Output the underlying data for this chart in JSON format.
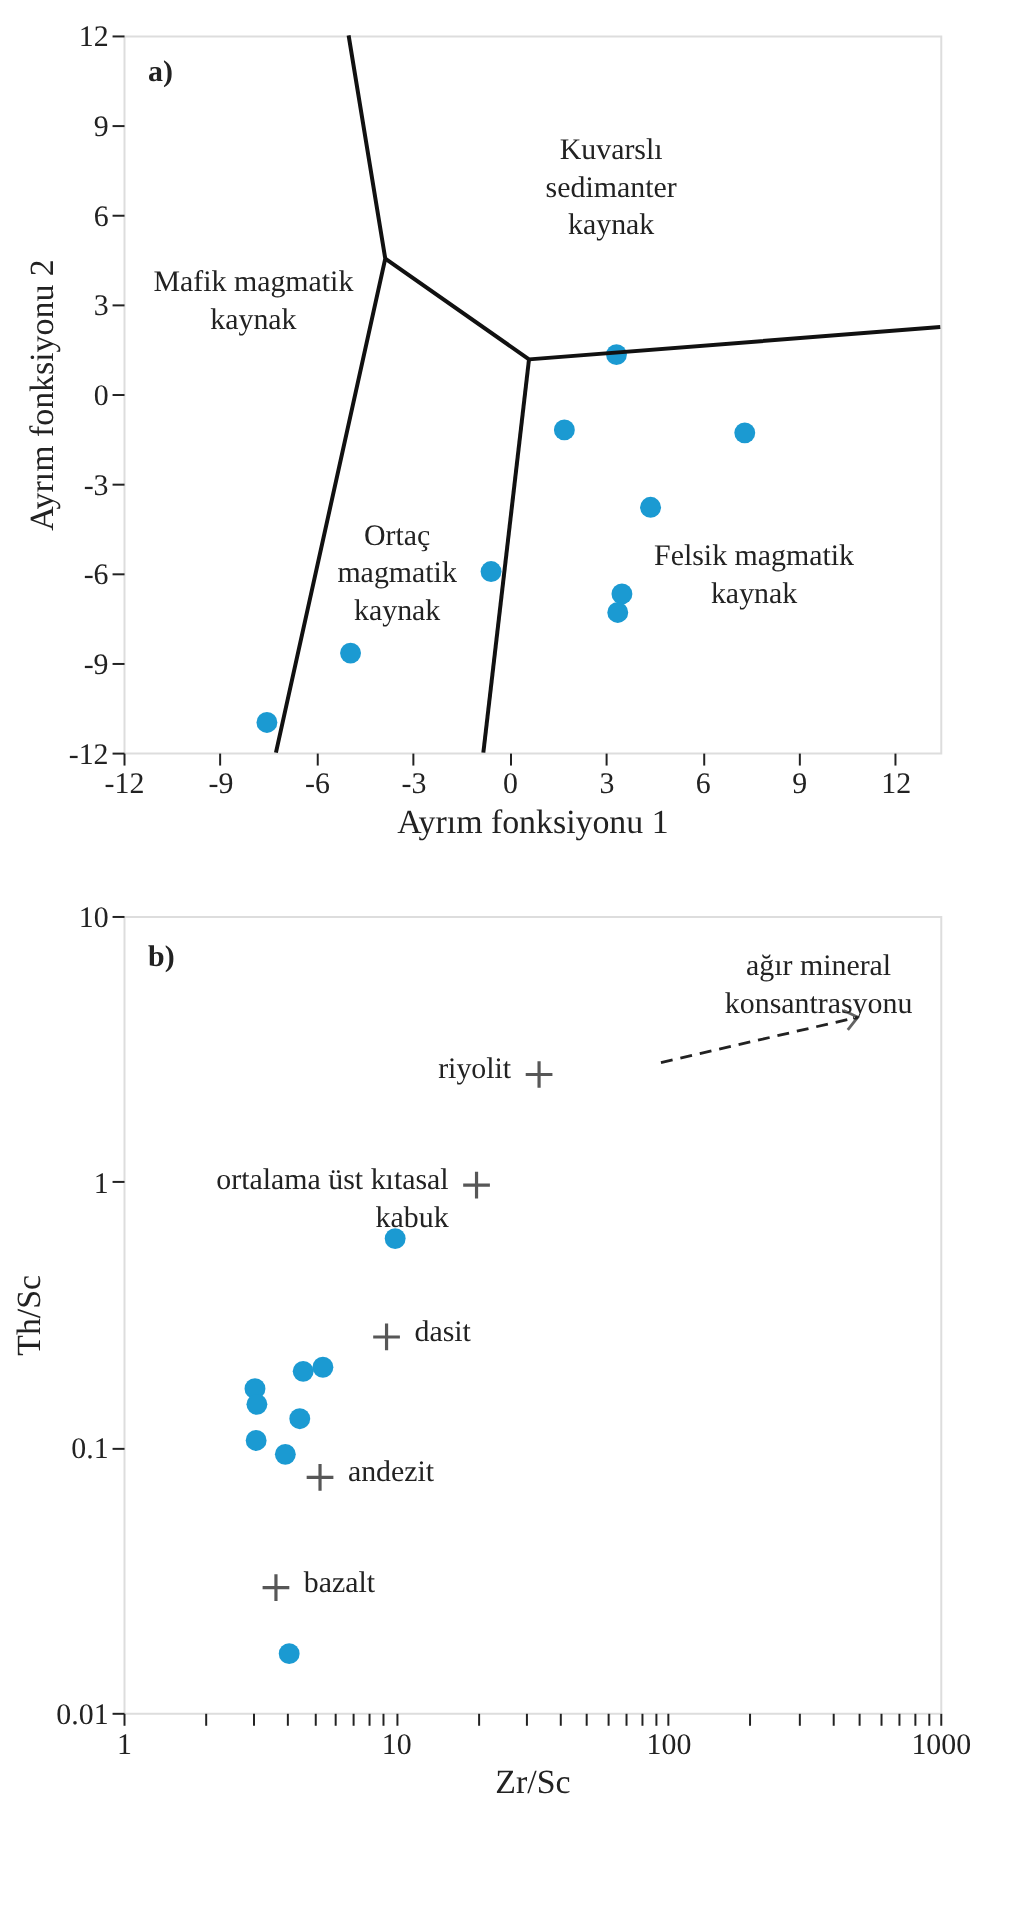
{
  "chart_data": [
    {
      "type": "scatter",
      "xlabel": "Ayrım fonksiyonu 1",
      "ylabel": "Ayrım fonksiyonu 2",
      "xlim": [
        -12,
        13.4
      ],
      "ylim": [
        -12,
        12
      ],
      "xticks": [
        -12,
        -9,
        -6,
        -3,
        0,
        3,
        6,
        9,
        12
      ],
      "yticks": [
        -12,
        -9,
        -6,
        -3,
        0,
        3,
        6,
        9,
        12
      ],
      "grid": false,
      "series": [
        {
          "marker": "circle",
          "color": "#1b9ad2",
          "x": [
            3.33,
            1.71,
            7.32,
            4.39,
            -0.57,
            3.5,
            3.37,
            -4.94,
            -7.54
          ],
          "values": [
            1.32,
            -1.2,
            -1.3,
            -3.79,
            -5.94,
            -6.69,
            -7.31,
            -8.67,
            -10.99
          ]
        },
        {
          "type": "line",
          "color": "#111111",
          "x": [
            -5.0,
            -3.86,
            -7.26
          ],
          "values": [
            12,
            4.53,
            -12
          ]
        },
        {
          "type": "line",
          "color": "#111111",
          "x": [
            -3.86,
            0.61,
            13.4
          ],
          "values": [
            4.53,
            1.16,
            2.24
          ]
        },
        {
          "type": "line",
          "color": "#111111",
          "x": [
            0.61,
            -0.81
          ],
          "values": [
            1.16,
            -12
          ]
        }
      ],
      "annotations": [
        "a)",
        "Kuvarslı\nsedimanter\nkaynak",
        "Mafik magmatik\nkaynak",
        "Ortaç\nmagmatik\nkaynak",
        "Felsik magmatik\nkaynak"
      ]
    },
    {
      "type": "scatter",
      "xlabel": "Zr/Sc",
      "ylabel": "Th/Sc",
      "log": "xy",
      "xlim": [
        1,
        1000
      ],
      "ylim": [
        0.01,
        10
      ],
      "xticks": [
        1,
        {
          "value": 2,
          "label": null
        },
        {
          "value": 3,
          "label": null
        },
        {
          "value": 4,
          "label": null
        },
        {
          "value": 5,
          "label": null
        },
        {
          "value": 6,
          "label": null
        },
        {
          "value": 7,
          "label": null
        },
        {
          "value": 8,
          "label": null
        },
        {
          "value": 9,
          "label": null
        },
        10,
        {
          "value": 20,
          "label": null
        },
        {
          "value": 30,
          "label": null
        },
        {
          "value": 40,
          "label": null
        },
        {
          "value": 50,
          "label": null
        },
        {
          "value": 60,
          "label": null
        },
        {
          "value": 70,
          "label": null
        },
        {
          "value": 80,
          "label": null
        },
        {
          "value": 90,
          "label": null
        },
        100,
        {
          "value": 200,
          "label": null
        },
        {
          "value": 300,
          "label": null
        },
        {
          "value": 400,
          "label": null
        },
        {
          "value": 500,
          "label": null
        },
        {
          "value": 600,
          "label": null
        },
        {
          "value": 700,
          "label": null
        },
        {
          "value": 800,
          "label": null
        },
        {
          "value": 900,
          "label": null
        },
        1000
      ],
      "yticks": [
        0.01,
        0.1,
        1,
        10
      ],
      "grid": false,
      "series": [
        {
          "marker": "circle",
          "color": "#1b9ad2",
          "x": [
            9.95,
            5.4,
            4.57,
            3.04,
            3.09,
            4.44,
            3.07,
            3.93,
            4.06
          ],
          "values": [
            0.61,
            0.2,
            0.193,
            0.166,
            0.145,
            0.128,
            0.106,
            0.094,
            0.0167
          ]
        },
        {
          "marker": "cross",
          "color": "#111111",
          "x": [
            33.6,
            19.8,
            9.25,
            5.27,
            3.63
          ],
          "values": [
            2.53,
            0.97,
            0.26,
            0.077,
            0.0296
          ]
        }
      ],
      "annotations": [
        "b)",
        "ağır mineral\nkonsantrasyonu",
        {
          "text": "riyolit",
          "x": 33.6,
          "y": 2.53
        },
        {
          "text": "ortalama üst kıtasal\nkabuk",
          "x": 19.8,
          "y": 0.97
        },
        {
          "text": "dasit",
          "x": 9.25,
          "y": 0.26
        },
        {
          "text": "andezit",
          "x": 5.27,
          "y": 0.077
        },
        {
          "text": "bazalt",
          "x": 3.63,
          "y": 0.0296
        }
      ]
    }
  ]
}
